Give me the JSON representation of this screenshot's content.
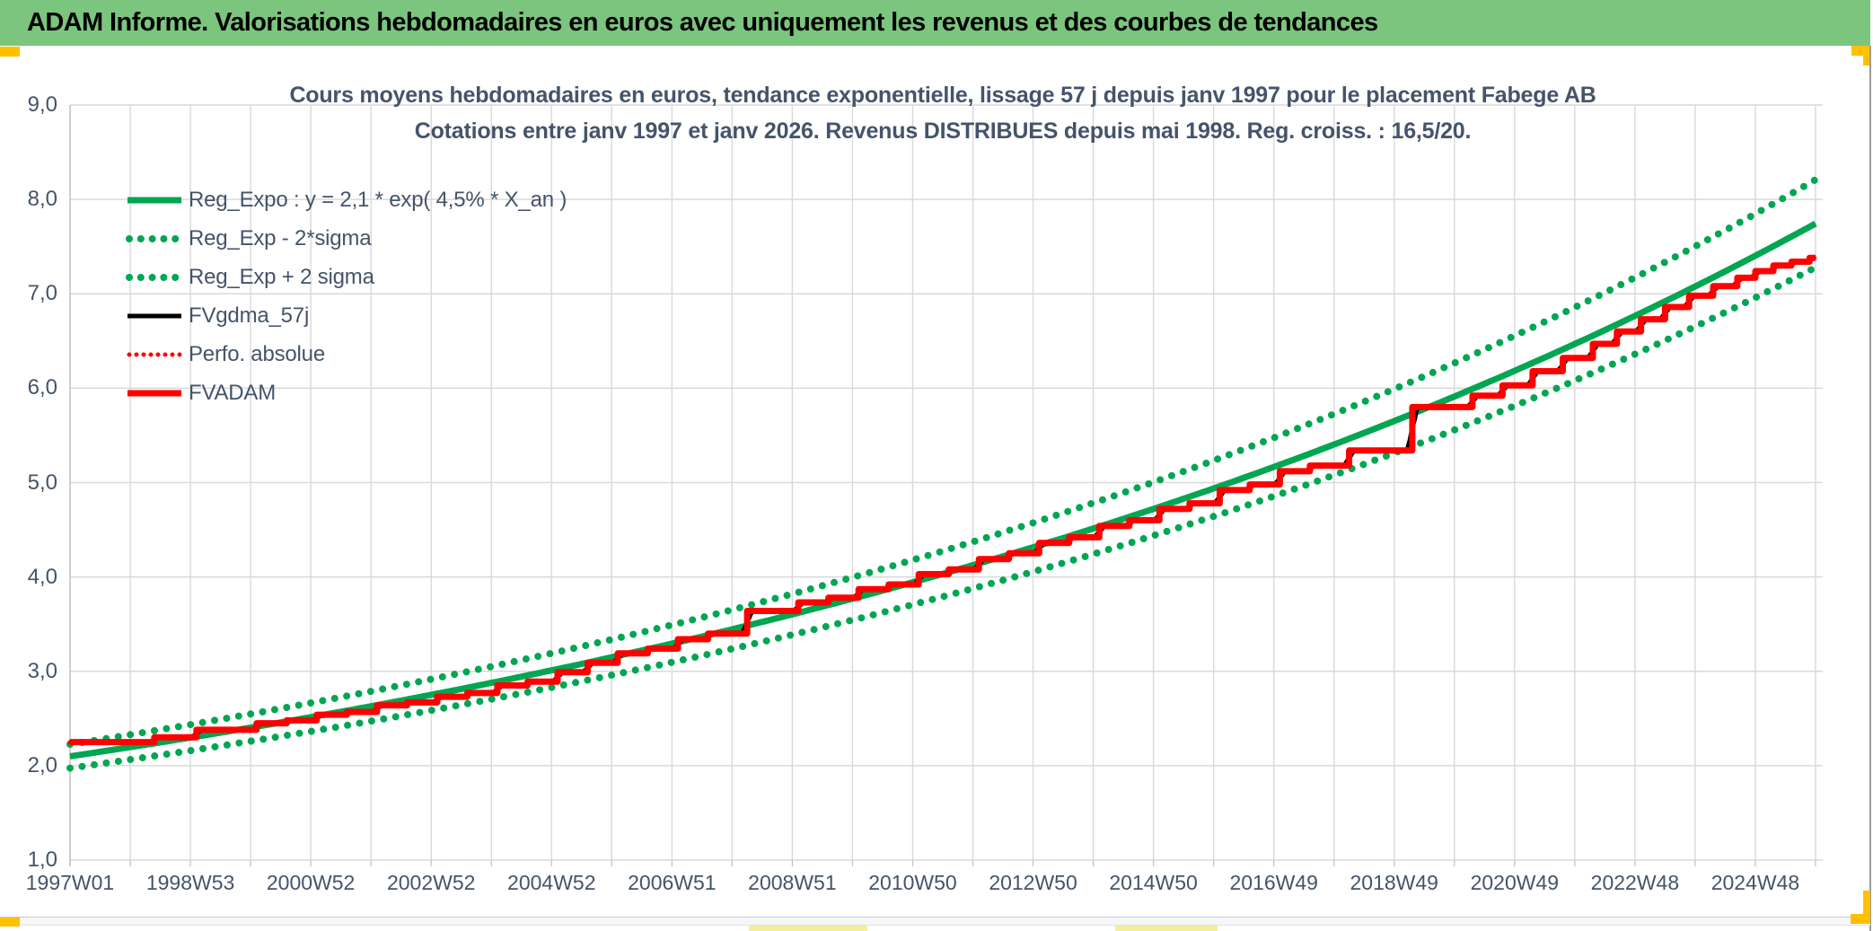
{
  "header": {
    "title": "ADAM Informe. Valorisations hebdomadaires en euros avec uniquement les revenus et des courbes de tendances",
    "bg_color": "#7CC57E",
    "accent_color": "#FFC000"
  },
  "chart_data": {
    "type": "line",
    "title_line1": "Cours moyens hebdomadaires en euros, tendance exponentielle, lissage 57 j depuis janv 1997 pour le placement Fabege AB",
    "title_line2": "Cotations entre janv 1997 et janv 2026. Revenus DISTRIBUES depuis mai 1998. Reg. croiss. : 16,5/20.",
    "text_color": "#44546A",
    "grid_color": "#D9D9D9",
    "axis_color": "#BFBFBF",
    "x_range_years": [
      1997,
      2026
    ],
    "ylim": [
      1.0,
      9.0
    ],
    "grid": "on",
    "legend_position": "top-left",
    "y_ticks": [
      {
        "label": "9,0",
        "value": 9.0
      },
      {
        "label": "8,0",
        "value": 8.0
      },
      {
        "label": "7,0",
        "value": 7.0
      },
      {
        "label": "6,0",
        "value": 6.0
      },
      {
        "label": "5,0",
        "value": 5.0
      },
      {
        "label": "4,0",
        "value": 4.0
      },
      {
        "label": "3,0",
        "value": 3.0
      },
      {
        "label": "2,0",
        "value": 2.0
      },
      {
        "label": "1,0",
        "value": 1.0
      }
    ],
    "x_ticks": [
      {
        "label": "1997W01",
        "year": 1997.0
      },
      {
        "label": "1998W53",
        "year": 1999.0
      },
      {
        "label": "2000W52",
        "year": 2001.0
      },
      {
        "label": "2002W52",
        "year": 2003.0
      },
      {
        "label": "2004W52",
        "year": 2005.0
      },
      {
        "label": "2006W51",
        "year": 2007.0
      },
      {
        "label": "2008W51",
        "year": 2009.0
      },
      {
        "label": "2010W50",
        "year": 2011.0
      },
      {
        "label": "2012W50",
        "year": 2013.0
      },
      {
        "label": "2014W50",
        "year": 2015.0
      },
      {
        "label": "2016W49",
        "year": 2017.0
      },
      {
        "label": "2018W49",
        "year": 2019.0
      },
      {
        "label": "2020W49",
        "year": 2021.0
      },
      {
        "label": "2022W48",
        "year": 2023.0
      },
      {
        "label": "2024W48",
        "year": 2025.0
      }
    ],
    "regression": {
      "a": 2.1,
      "rate": 0.045,
      "sigma_upper_factor": 1.06,
      "sigma_lower_factor": 0.94
    },
    "series": [
      {
        "name": "Reg_Expo : y = 2,1 * exp( 4,5% *  X_an )",
        "shape": "exp",
        "factor": 1.0,
        "color": "#00A651",
        "style": "solid",
        "width": 7
      },
      {
        "name": "Reg_Exp - 2*sigma",
        "shape": "exp",
        "factor": 0.94,
        "color": "#00A651",
        "style": "dotted",
        "width": 8
      },
      {
        "name": "Reg_Exp + 2 sigma",
        "shape": "exp",
        "factor": 1.06,
        "color": "#00A651",
        "style": "dotted",
        "width": 8
      },
      {
        "name": "FVgdma_57j",
        "shape": "steps_smooth",
        "color": "#000000",
        "style": "solid",
        "width": 5
      },
      {
        "name": "Perfo. absolue",
        "shape": "steps",
        "color": "#FF0000",
        "style": "dotted",
        "width": 5
      },
      {
        "name": "FVADAM",
        "shape": "steps",
        "color": "#FF0000",
        "style": "solid",
        "width": 7
      }
    ],
    "steps": [
      [
        1997.0,
        2.25
      ],
      [
        1998.4,
        2.3
      ],
      [
        1999.1,
        2.38
      ],
      [
        2000.1,
        2.45
      ],
      [
        2000.6,
        2.48
      ],
      [
        2001.1,
        2.54
      ],
      [
        2001.6,
        2.57
      ],
      [
        2002.1,
        2.64
      ],
      [
        2002.6,
        2.67
      ],
      [
        2003.1,
        2.73
      ],
      [
        2003.6,
        2.77
      ],
      [
        2004.1,
        2.85
      ],
      [
        2004.6,
        2.89
      ],
      [
        2005.1,
        2.99
      ],
      [
        2005.6,
        3.09
      ],
      [
        2006.1,
        3.19
      ],
      [
        2006.6,
        3.24
      ],
      [
        2007.1,
        3.34
      ],
      [
        2007.6,
        3.4
      ],
      [
        2008.25,
        3.64
      ],
      [
        2009.1,
        3.73
      ],
      [
        2009.6,
        3.78
      ],
      [
        2010.1,
        3.87
      ],
      [
        2010.6,
        3.92
      ],
      [
        2011.1,
        4.03
      ],
      [
        2011.6,
        4.08
      ],
      [
        2012.1,
        4.19
      ],
      [
        2012.6,
        4.25
      ],
      [
        2013.1,
        4.36
      ],
      [
        2013.6,
        4.42
      ],
      [
        2014.1,
        4.54
      ],
      [
        2014.6,
        4.6
      ],
      [
        2015.1,
        4.72
      ],
      [
        2015.6,
        4.78
      ],
      [
        2016.1,
        4.92
      ],
      [
        2016.6,
        4.98
      ],
      [
        2017.1,
        5.12
      ],
      [
        2017.6,
        5.18
      ],
      [
        2018.25,
        5.34
      ],
      [
        2019.3,
        5.8
      ],
      [
        2020.3,
        5.92
      ],
      [
        2020.8,
        6.03
      ],
      [
        2021.3,
        6.18
      ],
      [
        2021.8,
        6.32
      ],
      [
        2022.3,
        6.47
      ],
      [
        2022.7,
        6.6
      ],
      [
        2023.1,
        6.73
      ],
      [
        2023.5,
        6.86
      ],
      [
        2023.9,
        6.98
      ],
      [
        2024.3,
        7.08
      ],
      [
        2024.7,
        7.17
      ],
      [
        2025.0,
        7.24
      ],
      [
        2025.3,
        7.3
      ],
      [
        2025.6,
        7.34
      ],
      [
        2025.9,
        7.38
      ]
    ]
  }
}
